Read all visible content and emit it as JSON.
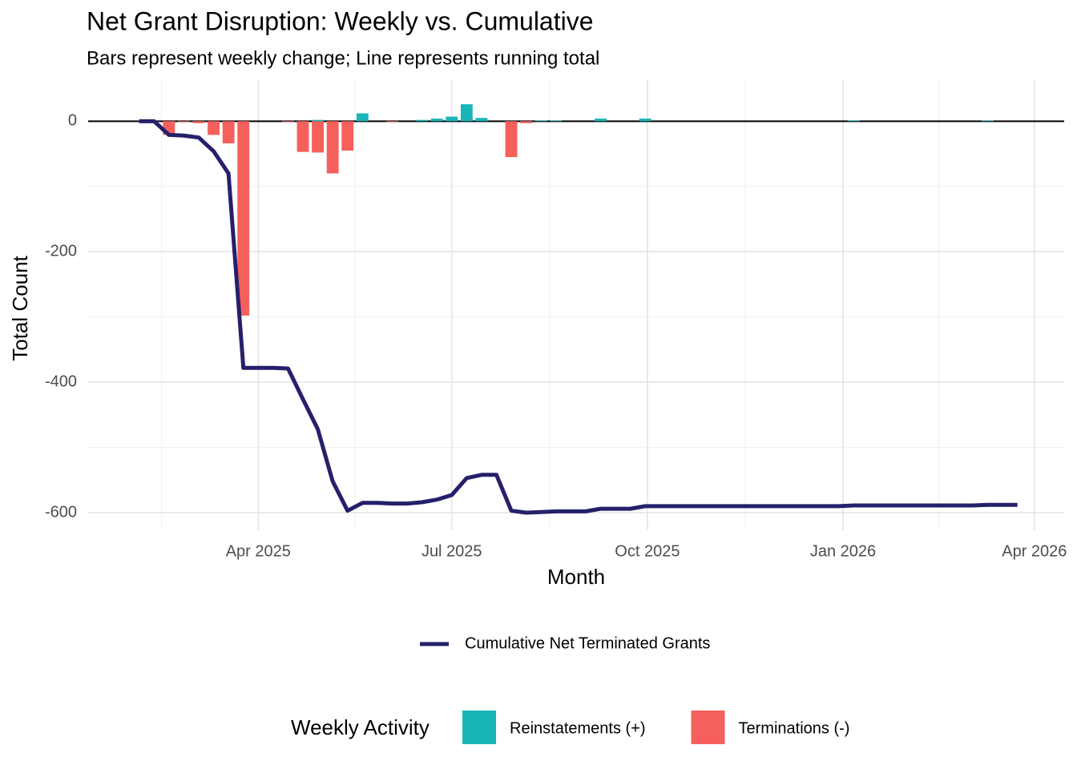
{
  "chart_data": {
    "type": "bar",
    "title": "Net Grant Disruption: Weekly vs. Cumulative",
    "subtitle": "Bars represent weekly change; Line represents running total",
    "x_label": "Month",
    "y_label": "Total Count",
    "legend_title": "Weekly Activity",
    "x": [
      34,
      41,
      48,
      55,
      62,
      69,
      76,
      83,
      90,
      97,
      104,
      111,
      118,
      125,
      132,
      139,
      146,
      153,
      160,
      167,
      174,
      181,
      188,
      195,
      202,
      209,
      216,
      223,
      230,
      237,
      244,
      251,
      258,
      265,
      272,
      279,
      286,
      293,
      300,
      307,
      314,
      321,
      328,
      335,
      342,
      349,
      356,
      363,
      370,
      377,
      384,
      391,
      398,
      405,
      412,
      419,
      426,
      433,
      440,
      447
    ],
    "series": [
      {
        "name": "Reinstatements (+)",
        "type": "bar",
        "color": "#1AB5B8",
        "values": [
          0,
          0,
          0,
          0,
          0,
          0,
          0,
          0,
          0,
          0,
          0,
          0,
          2,
          0,
          0,
          12,
          0,
          0,
          0,
          2,
          4,
          7,
          26,
          5,
          0,
          0,
          0,
          1,
          1,
          0,
          0,
          4,
          0,
          0,
          4,
          0,
          0,
          0,
          0,
          0,
          0,
          0,
          0,
          0,
          0,
          0,
          0,
          0,
          1,
          0,
          0,
          0,
          0,
          0,
          0,
          0,
          0,
          1,
          0,
          0
        ]
      },
      {
        "name": "Terminations (-)",
        "type": "bar",
        "color": "#F5605C",
        "values": [
          0,
          0,
          -21,
          -1,
          -3,
          -21,
          -34,
          -298,
          0,
          0,
          -1,
          -47,
          -48,
          -80,
          -45,
          0,
          0,
          -1,
          0,
          0,
          0,
          0,
          0,
          0,
          0,
          -55,
          -3,
          0,
          0,
          0,
          0,
          0,
          0,
          0,
          0,
          0,
          0,
          0,
          0,
          0,
          0,
          0,
          0,
          0,
          0,
          0,
          0,
          0,
          0,
          0,
          0,
          0,
          0,
          0,
          0,
          0,
          0,
          0,
          0,
          0
        ]
      },
      {
        "name": "Cumulative Net Terminated Grants",
        "type": "line",
        "color": "#25206B",
        "values": [
          0,
          0,
          -21,
          -22,
          -25,
          -46,
          -80,
          -378,
          -378,
          -378,
          -379,
          -426,
          -472,
          -552,
          -597,
          -585,
          -585,
          -586,
          -586,
          -584,
          -580,
          -573,
          -547,
          -542,
          -542,
          -597,
          -600,
          -599,
          -598,
          -598,
          -598,
          -594,
          -594,
          -594,
          -590,
          -590,
          -590,
          -590,
          -590,
          -590,
          -590,
          -590,
          -590,
          -590,
          -590,
          -590,
          -590,
          -590,
          -589,
          -589,
          -589,
          -589,
          -589,
          -589,
          -589,
          -589,
          -589,
          -588,
          -588,
          -588
        ]
      }
    ],
    "xlim": [
      10,
      469
    ],
    "xticks": [
      {
        "value": 90,
        "label": "Apr 2025"
      },
      {
        "value": 181,
        "label": "Jul 2025"
      },
      {
        "value": 273,
        "label": "Oct 2025"
      },
      {
        "value": 365,
        "label": "Jan 2026"
      },
      {
        "value": 455,
        "label": "Apr 2026"
      }
    ],
    "ylim": [
      -627,
      63
    ],
    "yticks": [
      -600,
      -400,
      -200,
      0
    ],
    "hline": 0,
    "grid": true,
    "legend_position": "bottom"
  }
}
